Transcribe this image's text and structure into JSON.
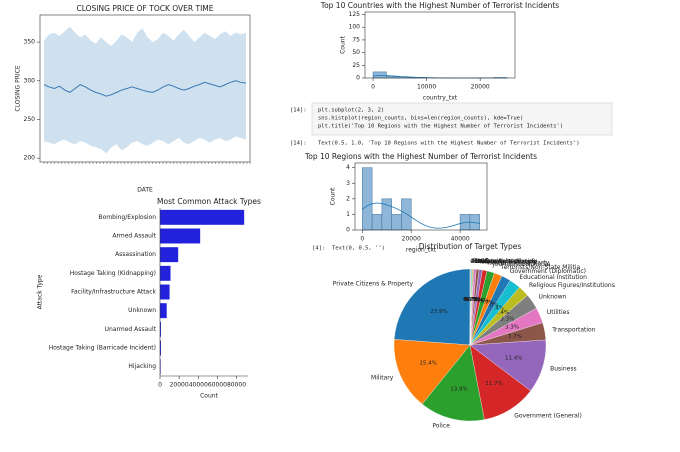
{
  "chart_data": [
    {
      "type": "line",
      "title": "CLOSING PRICE OF TOCK OVER TIME",
      "x_label": "DATE",
      "y_label": "CLOSING PRICE",
      "ylim": [
        195,
        385
      ],
      "yticks": [
        200,
        250,
        300,
        350
      ],
      "color": "#3a78b5",
      "band_color": "#cfe1ef",
      "values": [
        295,
        292,
        290,
        293,
        288,
        285,
        290,
        295,
        292,
        288,
        285,
        283,
        280,
        282,
        285,
        288,
        290,
        292,
        290,
        288,
        286,
        285,
        288,
        292,
        295,
        293,
        290,
        288,
        290,
        293,
        295,
        298,
        296,
        294,
        292,
        295,
        298,
        300,
        298,
        297
      ],
      "band_upper": [
        352,
        360,
        362,
        358,
        364,
        370,
        362,
        356,
        360,
        352,
        348,
        356,
        350,
        345,
        352,
        360,
        356,
        350,
        362,
        368,
        356,
        350,
        354,
        362,
        358,
        352,
        360,
        366,
        358,
        350,
        356,
        362,
        358,
        354,
        360,
        364,
        358,
        362,
        360,
        362
      ],
      "band_lower": [
        222,
        220,
        218,
        222,
        224,
        220,
        218,
        222,
        220,
        216,
        214,
        212,
        206,
        214,
        218,
        210,
        214,
        220,
        222,
        218,
        216,
        220,
        224,
        222,
        218,
        222,
        226,
        220,
        218,
        222,
        226,
        224,
        220,
        224,
        226,
        222,
        224,
        228,
        226,
        224
      ]
    },
    {
      "type": "histogram",
      "title": "Top 10 Countries with the Highest Number of Terrorist Incidents",
      "x_label": "country_txt",
      "y_label": "Count",
      "bins": [
        0,
        2500,
        5000,
        7500,
        10000,
        12500,
        15000,
        17500,
        20000,
        22500,
        25000
      ],
      "counts": [
        12,
        3,
        1,
        1,
        0,
        0,
        0,
        0,
        0,
        1
      ],
      "xlim": [
        -1500,
        26500
      ],
      "xticks": [
        0,
        10000,
        20000
      ],
      "ylim": [
        0,
        130
      ],
      "yticks": [
        0,
        25,
        50,
        75,
        100,
        125
      ],
      "color": "#8db6d8",
      "kde": true
    },
    {
      "type": "histogram",
      "title": "Top 10 Regions with the Highest Number of Terrorist Incidents",
      "x_label": "region_txt",
      "y_label": "Count",
      "bins": [
        0,
        4000,
        8000,
        12000,
        16000,
        20000,
        24000,
        28000,
        32000,
        36000,
        40000,
        44000,
        48000
      ],
      "counts": [
        4,
        1,
        2,
        1,
        2,
        0,
        0,
        0,
        0,
        0,
        1,
        1
      ],
      "xlim": [
        -3000,
        51000
      ],
      "xticks": [
        0,
        20000,
        40000
      ],
      "ylim": [
        0,
        4.3
      ],
      "yticks": [
        0,
        1,
        2,
        3,
        4
      ],
      "color": "#8db6d8",
      "kde": true
    },
    {
      "type": "barh",
      "title": "Most Common Attack Types",
      "x_label": "Count",
      "y_label": "Attack Type",
      "color": "#2222dd",
      "categories": [
        "Bombing/Explosion",
        "Armed Assault",
        "Assassination",
        "Hostage Taking (Kidnapping)",
        "Facility/Infrastructure Attack",
        "Unknown",
        "Unarmed Assault",
        "Hostage Taking (Barricade Incident)",
        "Hijacking"
      ],
      "values": [
        88000,
        42000,
        19000,
        11000,
        10000,
        7000,
        1000,
        1000,
        650
      ],
      "xlim": [
        0,
        92000
      ],
      "xticks": [
        0,
        20000,
        40000,
        60000,
        80000
      ]
    },
    {
      "type": "pie",
      "title": "Distribution of Target Types",
      "categories": [
        "Private Citizens & Property",
        "Military",
        "Police",
        "Government (General)",
        "Business",
        "Transportation",
        "Utilities",
        "Unknown",
        "Religious Figures/Institutions",
        "Educational Institution",
        "Government (Diplomatic)",
        "Terrorists/Non-State Militia",
        "Journalists & Media",
        "Violent Political Party",
        "Airports & Aircraft",
        "Telecommunication",
        "NGO",
        "Tourists",
        "Food or Water Supply",
        "Maritime",
        "Abortion Related",
        "Other"
      ],
      "values": [
        23.9,
        15.4,
        13.9,
        11.7,
        11.4,
        3.7,
        3.3,
        3.3,
        2.4,
        2.4,
        2.0,
        1.7,
        1.6,
        1.0,
        0.7,
        0.6,
        0.5,
        0.2,
        0.2,
        0.2,
        0.1,
        0.1
      ],
      "value_labels": [
        "23.9%",
        "15.4%",
        "13.9%",
        "11.7%",
        "11.4%",
        "3.7%",
        "3.3%",
        "3.3%",
        "2.4%",
        "2.4%",
        "2.0%",
        "1.7%",
        "1.6%",
        "1.0%",
        "0.7%",
        "0.6%",
        "0.5%",
        "0.2%",
        "0.2%",
        "0.2%",
        "0.1%",
        "0.1%"
      ],
      "colors": [
        "#1f77b4",
        "#ff7f0e",
        "#2ca02c",
        "#d62728",
        "#9467bd",
        "#8c564b",
        "#e377c2",
        "#7f7f7f",
        "#bcbd22",
        "#17becf"
      ]
    }
  ],
  "cells": {
    "code_prompt": "[14]:",
    "code": [
      "plt.subplot(2, 3, 2)",
      "sns.histplot(region_counts, bins=len(region_counts), kde=True)",
      "plt.title('Top 10 Regions with the Highest Number of Terrorist Incidents')"
    ],
    "output_prompt": "[14]:",
    "output": "Text(0.5, 1.0, 'Top 10 Regions with the Highest Number of Terrorist Incidents')",
    "output2_prompt": "[4]:",
    "output2": "Text(0, 0.5, '')"
  }
}
